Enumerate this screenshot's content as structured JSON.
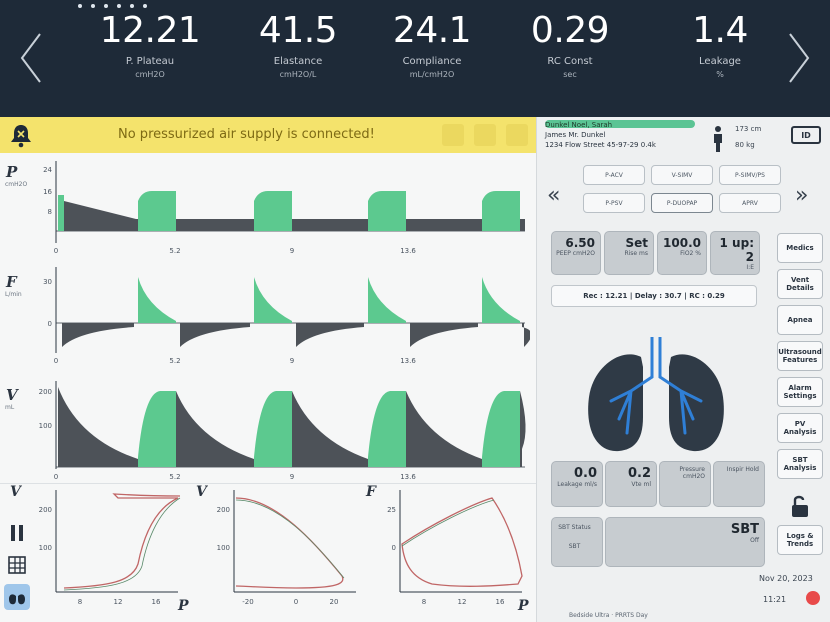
{
  "top_bar": {
    "metrics": [
      {
        "value": "12.21",
        "label": "P. Plateau",
        "unit": "cmH2O"
      },
      {
        "value": "41.5",
        "label": "Elastance",
        "unit": "cmH2O/L"
      },
      {
        "value": "24.1",
        "label": "Compliance",
        "unit": "mL/cmH2O"
      },
      {
        "value": "0.29",
        "label": "RC Const",
        "unit": "sec"
      },
      {
        "value": "1.4",
        "label": "Leakage",
        "unit": "%"
      }
    ],
    "page_dots": 6
  },
  "alert": {
    "text": "No pressurized air supply is connected!"
  },
  "waveforms": [
    {
      "label": "P",
      "unit": "cmH2O",
      "ticks_y": [
        "24",
        "16",
        "8"
      ],
      "ticks_x": [
        "0",
        "5.2",
        "9",
        "13.6"
      ]
    },
    {
      "label": "F",
      "unit": "L/min",
      "ticks_y": [
        "30",
        "0"
      ],
      "ticks_x": [
        "0",
        "5.2",
        "9",
        "13.6"
      ]
    },
    {
      "label": "V",
      "unit": "mL",
      "ticks_y": [
        "200",
        "100"
      ],
      "ticks_x": [
        "0",
        "5.2",
        "9",
        "13.6"
      ]
    }
  ],
  "loops": [
    {
      "y_label": "V",
      "x_label": "P",
      "y_ticks": [
        "200",
        "100"
      ],
      "x_ticks": [
        "8",
        "12",
        "16"
      ]
    },
    {
      "y_label": "V",
      "x_label": "F",
      "y_ticks": [
        "200",
        "100"
      ],
      "x_ticks": [
        "-20",
        "0",
        "20"
      ]
    },
    {
      "y_label": "F",
      "x_label": "P",
      "y_ticks": [
        "25",
        "0"
      ],
      "x_ticks": [
        "8",
        "12",
        "16"
      ]
    }
  ],
  "patient": {
    "name_line": "Dunkel Noel, Sarah",
    "line2": "James Mr. Dunkel",
    "line3": "1234 Flow Street 45-97-29 0.4k",
    "height": "173",
    "height_unit": "cm",
    "weight": "80",
    "weight_unit": "kg",
    "card_icon": "ID"
  },
  "modes": {
    "row1": [
      "P-ACV",
      "V-SIMV",
      "P-SIMV/PS"
    ],
    "row2": [
      "P-PSV",
      "P-DUOPAP",
      "APRV"
    ]
  },
  "settings_tiles": [
    {
      "value": "6.50",
      "label": "PEEP cmH2O"
    },
    {
      "value": "Set",
      "label": "Rise ms"
    },
    {
      "value": "100.0",
      "label": "FiO2 %"
    },
    {
      "value": "1 up: 2",
      "label": "I:E"
    }
  ],
  "mv_line": "Rec : 12.21  |  Delay : 30.7  |  RC : 0.29",
  "side_buttons": [
    "Medics",
    "Vent Details",
    "Apnea",
    "Ultrasound Features",
    "Alarm Settings",
    "PV Analysis",
    "SBT Analysis",
    "Lock",
    "Logs & Trends"
  ],
  "bottom_tiles": [
    {
      "value": "0.0",
      "label": "Leakage ml/s"
    },
    {
      "value": "0.2",
      "label": "Vte ml"
    },
    {
      "value": "",
      "label": "Pressure cmH2O"
    },
    {
      "value": "",
      "label": "Inspir Hold"
    }
  ],
  "sbt": {
    "left_label": "SBT Status",
    "left_sub": "SBT",
    "value": "SBT",
    "sub": "Off"
  },
  "date": "Nov 20, 2023",
  "time": "11:21",
  "footer": "Bedside Ultra  ·  PRRTS Day",
  "colors": {
    "green": "#5cc98f",
    "dark_fill": "#4d5258",
    "lung_dark": "#2f3a46",
    "lung_blue": "#2f7fd6"
  }
}
